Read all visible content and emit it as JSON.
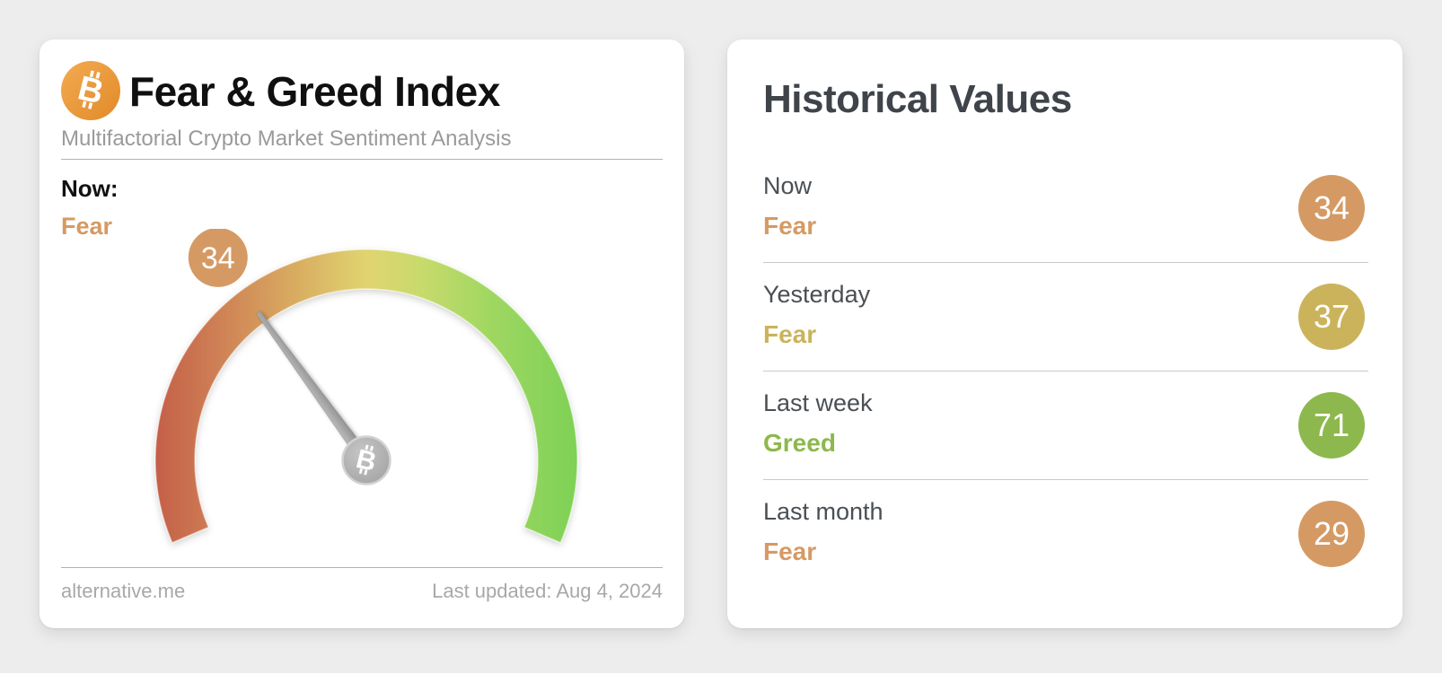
{
  "page": {
    "background_color": "#ededee"
  },
  "gauge_card": {
    "title": "Fear & Greed Index",
    "subtitle": "Multifactorial Crypto Market Sentiment Analysis",
    "now_label": "Now:",
    "now_classification": "Fear",
    "gauge": {
      "value": 34,
      "min": 0,
      "max": 100,
      "badge_color": "#d59a64"
    },
    "footer": {
      "source": "alternative.me",
      "last_updated": "Last updated: Aug 4, 2024"
    }
  },
  "historical_card": {
    "title": "Historical Values",
    "rows": [
      {
        "label": "Now",
        "classification": "Fear",
        "value": "34",
        "color": "#d59a64"
      },
      {
        "label": "Yesterday",
        "classification": "Fear",
        "value": "37",
        "color": "#cbb35c"
      },
      {
        "label": "Last week",
        "classification": "Greed",
        "value": "71",
        "color": "#8db84d"
      },
      {
        "label": "Last month",
        "classification": "Fear",
        "value": "29",
        "color": "#d59a64"
      }
    ]
  },
  "colors": {
    "fear_orange": "#d59a64",
    "fear_gold": "#cbb35c",
    "greed_green": "#8db84d",
    "bitcoin_orange": "#ea973d",
    "needle_gray": "#a3a3a3"
  },
  "chart_data": {
    "type": "gauge",
    "title": "Fear & Greed Index",
    "value": 34,
    "min": 0,
    "max": 100,
    "classification": "Fear",
    "scale_gradient": [
      "#c45f48",
      "#d8a960",
      "#e0d470",
      "#9ed761",
      "#7ed156"
    ],
    "arc_start_deg": 203,
    "arc_sweep_deg": 226,
    "historical": [
      {
        "label": "Now",
        "value": 34,
        "classification": "Fear"
      },
      {
        "label": "Yesterday",
        "value": 37,
        "classification": "Fear"
      },
      {
        "label": "Last week",
        "value": 71,
        "classification": "Greed"
      },
      {
        "label": "Last month",
        "value": 29,
        "classification": "Fear"
      }
    ]
  }
}
